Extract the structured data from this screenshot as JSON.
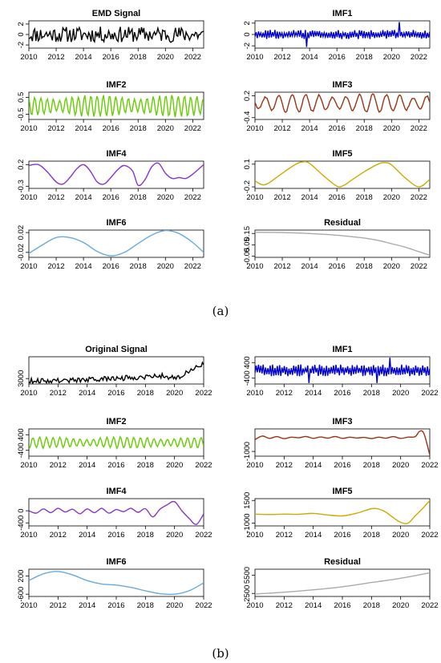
{
  "figure": {
    "caption_a": "(a)",
    "caption_b": "(b)"
  },
  "chart_data": [
    {
      "group": "a",
      "type": "line",
      "title": "EMD Signal",
      "color": "#000000",
      "x_range": [
        2010,
        2022.8
      ],
      "xticks": [
        2010,
        2012,
        2014,
        2016,
        2018,
        2020,
        2022
      ],
      "ylim": [
        -2.6,
        2.6
      ],
      "yticks": [
        {
          "v": 2,
          "label": "2"
        },
        {
          "v": 0,
          "label": "0"
        },
        {
          "v": -2,
          "label": "-2"
        }
      ],
      "series": [
        {
          "kind": "noise",
          "n": 150,
          "amp": 1.5,
          "seed": 11
        }
      ]
    },
    {
      "group": "a",
      "type": "line",
      "title": "IMF1",
      "color": "#0000cc",
      "x_range": [
        2010,
        2022.8
      ],
      "xticks": [
        2010,
        2012,
        2014,
        2016,
        2018,
        2020,
        2022
      ],
      "ylim": [
        -2.4,
        2.4
      ],
      "yticks": [
        {
          "v": 2,
          "label": "2"
        },
        {
          "v": 0,
          "label": "0"
        },
        {
          "v": -2,
          "label": "-2"
        }
      ],
      "series": [
        {
          "kind": "osc",
          "n": 150,
          "amp": 0.8,
          "spike": 2.2,
          "seed": 5
        }
      ]
    },
    {
      "group": "a",
      "type": "line",
      "title": "IMF2",
      "color": "#66cc00",
      "x_range": [
        2010,
        2022.8
      ],
      "xticks": [
        2010,
        2012,
        2014,
        2016,
        2018,
        2020,
        2022
      ],
      "ylim": [
        -0.8,
        0.8
      ],
      "yticks": [
        {
          "v": 0.5,
          "label": "0.5"
        },
        {
          "v": -0.5,
          "label": "-0.5"
        }
      ],
      "series": [
        {
          "kind": "wave",
          "n": 160,
          "amp": 0.55,
          "periods": 28,
          "seed": 2
        }
      ]
    },
    {
      "group": "a",
      "type": "line",
      "title": "IMF3",
      "color": "#993311",
      "x_range": [
        2010,
        2022.8
      ],
      "xticks": [
        2010,
        2012,
        2014,
        2016,
        2018,
        2020,
        2022
      ],
      "ylim": [
        -0.45,
        0.3
      ],
      "yticks": [
        {
          "v": 0.2,
          "label": "0.2"
        },
        {
          "v": -0.4,
          "label": "-0.4"
        }
      ],
      "series": [
        {
          "kind": "wave",
          "n": 160,
          "amp": 0.22,
          "periods": 13,
          "seed": 3
        }
      ]
    },
    {
      "group": "a",
      "type": "line",
      "title": "IMF4",
      "color": "#8833cc",
      "x_range": [
        2010,
        2022.8
      ],
      "xticks": [
        2010,
        2012,
        2014,
        2016,
        2018,
        2020,
        2022
      ],
      "ylim": [
        -0.35,
        0.28
      ],
      "yticks": [
        {
          "v": 0.2,
          "label": "0.2"
        },
        {
          "v": -0.3,
          "label": "-0.3"
        }
      ],
      "x": [
        2010,
        2010.7,
        2011.3,
        2012,
        2012.5,
        2013,
        2013.5,
        2014,
        2014.5,
        2015,
        2015.5,
        2016,
        2016.5,
        2017,
        2017.6,
        2018,
        2018.5,
        2019,
        2019.5,
        2020,
        2020.5,
        2021,
        2021.5,
        2022,
        2022.8
      ],
      "y": [
        0.18,
        0.2,
        0.05,
        -0.2,
        -0.25,
        -0.1,
        0.1,
        0.2,
        0.05,
        -0.2,
        -0.25,
        -0.1,
        0.08,
        0.18,
        0.05,
        -0.28,
        -0.15,
        0.15,
        0.23,
        0.0,
        -0.12,
        -0.1,
        -0.12,
        -0.02,
        0.2
      ]
    },
    {
      "group": "a",
      "type": "line",
      "title": "IMF5",
      "color": "#ccaa00",
      "x_range": [
        2010,
        2022.8
      ],
      "xticks": [
        2010,
        2012,
        2014,
        2016,
        2018,
        2020,
        2022
      ],
      "ylim": [
        -0.22,
        0.14
      ],
      "yticks": [
        {
          "v": 0.1,
          "label": "0.1"
        },
        {
          "v": -0.2,
          "label": "-0.2"
        }
      ],
      "x": [
        2010,
        2010.5,
        2011,
        2012,
        2013,
        2013.5,
        2014,
        2015,
        2016,
        2016.5,
        2017,
        2018,
        2019,
        2019.5,
        2020,
        2021,
        2022,
        2022.8
      ],
      "y": [
        -0.12,
        -0.17,
        -0.15,
        -0.02,
        0.1,
        0.13,
        0.11,
        -0.05,
        -0.19,
        -0.18,
        -0.12,
        0.0,
        0.1,
        0.12,
        0.09,
        -0.08,
        -0.2,
        -0.1
      ]
    },
    {
      "group": "a",
      "type": "line",
      "title": "IMF6",
      "color": "#66aadd",
      "x_range": [
        2010,
        2022.8
      ],
      "xticks": [
        2010,
        2012,
        2014,
        2016,
        2018,
        2020,
        2022
      ],
      "ylim": [
        -0.03,
        0.025
      ],
      "yticks": [
        {
          "v": 0.02,
          "label": "0.02"
        },
        {
          "v": -0.02,
          "label": "-0.02"
        }
      ],
      "x": [
        2010,
        2011,
        2012,
        2013,
        2014,
        2015,
        2016,
        2017,
        2018,
        2019,
        2020,
        2021,
        2022,
        2022.8
      ],
      "y": [
        -0.022,
        -0.005,
        0.01,
        0.01,
        0.0,
        -0.018,
        -0.027,
        -0.02,
        -0.002,
        0.015,
        0.024,
        0.018,
        0.0,
        -0.02
      ]
    },
    {
      "group": "a",
      "type": "line",
      "title": "Residual",
      "color": "#aaaaaa",
      "x_range": [
        2010,
        2022.8
      ],
      "xticks": [
        2010,
        2012,
        2014,
        2016,
        2018,
        2020,
        2022
      ],
      "ylim": [
        -0.06,
        0.18
      ],
      "yticks": [
        {
          "v": 0.15,
          "label": "0.15"
        },
        {
          "v": 0.05,
          "label": "0.05"
        },
        {
          "v": -0.05,
          "label": "-0.05"
        }
      ],
      "x": [
        2010,
        2012,
        2014,
        2016,
        2018,
        2019,
        2020,
        2021,
        2022,
        2022.8
      ],
      "y": [
        0.16,
        0.158,
        0.15,
        0.135,
        0.11,
        0.09,
        0.06,
        0.03,
        -0.01,
        -0.04
      ]
    },
    {
      "group": "b",
      "type": "line",
      "title": "Original Signal",
      "color": "#000000",
      "x_range": [
        2010,
        2022
      ],
      "xticks": [
        2010,
        2012,
        2014,
        2016,
        2018,
        2020,
        2022
      ],
      "ylim": [
        1500,
        9000
      ],
      "yticks": [
        {
          "v": 3000,
          "label": "3000"
        }
      ],
      "series": [
        {
          "kind": "trend",
          "n": 140,
          "amp": 700,
          "seed": 9
        }
      ]
    },
    {
      "group": "b",
      "type": "line",
      "title": "IMF1",
      "color": "#0000cc",
      "x_range": [
        2010,
        2022
      ],
      "xticks": [
        2010,
        2012,
        2014,
        2016,
        2018,
        2020,
        2022
      ],
      "ylim": [
        -700,
        700
      ],
      "yticks": [
        {
          "v": 400,
          "label": "400"
        },
        {
          "v": -400,
          "label": "-400"
        }
      ],
      "series": [
        {
          "kind": "osc",
          "n": 150,
          "amp": 300,
          "spike": 650,
          "seed": 13
        }
      ]
    },
    {
      "group": "b",
      "type": "line",
      "title": "IMF2",
      "color": "#66cc00",
      "x_range": [
        2010,
        2022
      ],
      "xticks": [
        2010,
        2012,
        2014,
        2016,
        2018,
        2020,
        2022
      ],
      "ylim": [
        -700,
        700
      ],
      "yticks": [
        {
          "v": 400,
          "label": "400"
        },
        {
          "v": -400,
          "label": "-400"
        }
      ],
      "series": [
        {
          "kind": "wave",
          "n": 160,
          "amp": 250,
          "periods": 26,
          "seed": 4
        }
      ]
    },
    {
      "group": "b",
      "type": "line",
      "title": "IMF3",
      "color": "#993311",
      "x_range": [
        2010,
        2022
      ],
      "xticks": [
        2010,
        2012,
        2014,
        2016,
        2018,
        2020,
        2022
      ],
      "ylim": [
        -1400,
        900
      ],
      "yticks": [
        {
          "v": -1000,
          "label": "-1000"
        }
      ],
      "x": [
        2010,
        2010.5,
        2011,
        2011.5,
        2012,
        2012.5,
        2013,
        2013.5,
        2014,
        2014.5,
        2015,
        2015.5,
        2016,
        2016.5,
        2017,
        2017.5,
        2018,
        2018.5,
        2019,
        2019.5,
        2020,
        2020.5,
        2021,
        2021.3,
        2021.6,
        2022
      ],
      "y": [
        0,
        300,
        100,
        250,
        80,
        200,
        150,
        260,
        100,
        220,
        120,
        260,
        100,
        200,
        130,
        180,
        90,
        200,
        120,
        250,
        100,
        200,
        250,
        700,
        500,
        -1300
      ]
    },
    {
      "group": "b",
      "type": "line",
      "title": "IMF4",
      "color": "#8833cc",
      "x_range": [
        2010,
        2022
      ],
      "xticks": [
        2010,
        2012,
        2014,
        2016,
        2018,
        2020,
        2022
      ],
      "ylim": [
        -500,
        400
      ],
      "yticks": [
        {
          "v": 0,
          "label": "0"
        },
        {
          "v": -400,
          "label": "-400"
        }
      ],
      "x": [
        2010,
        2010.5,
        2011,
        2011.5,
        2012,
        2012.5,
        2013,
        2013.5,
        2014,
        2014.5,
        2015,
        2015.5,
        2016,
        2016.5,
        2017,
        2017.5,
        2018,
        2018.5,
        2019,
        2019.5,
        2020,
        2020.5,
        2021,
        2021.5,
        2022
      ],
      "y": [
        0,
        -80,
        60,
        -60,
        80,
        -40,
        50,
        -100,
        60,
        -60,
        80,
        -80,
        40,
        -30,
        80,
        -50,
        70,
        -200,
        50,
        200,
        300,
        0,
        -250,
        -450,
        -100
      ]
    },
    {
      "group": "b",
      "type": "line",
      "title": "IMF5",
      "color": "#ccaa00",
      "x_range": [
        2010,
        2022
      ],
      "xticks": [
        2010,
        2012,
        2014,
        2016,
        2018,
        2020,
        2022
      ],
      "ylim": [
        -1300,
        1700
      ],
      "yticks": [
        {
          "v": 1500,
          "label": "1500"
        },
        {
          "v": -1000,
          "label": "-1000"
        }
      ],
      "x": [
        2010,
        2011,
        2012,
        2013,
        2014,
        2015,
        2016,
        2017,
        2018,
        2018.5,
        2019,
        2019.5,
        2020,
        2020.5,
        2021,
        2021.5,
        2022
      ],
      "y": [
        0,
        -50,
        0,
        -20,
        80,
        -100,
        -200,
        100,
        600,
        550,
        200,
        -400,
        -900,
        -1000,
        -200,
        600,
        1500
      ]
    },
    {
      "group": "b",
      "type": "line",
      "title": "IMF6",
      "color": "#66aadd",
      "x_range": [
        2010,
        2022
      ],
      "xticks": [
        2010,
        2012,
        2014,
        2016,
        2018,
        2020,
        2022
      ],
      "ylim": [
        -700,
        500
      ],
      "yticks": [
        {
          "v": 200,
          "label": "200"
        },
        {
          "v": -600,
          "label": "-600"
        }
      ],
      "x": [
        2010,
        2011,
        2012,
        2013,
        2014,
        2015,
        2016,
        2017,
        2018,
        2019,
        2020,
        2021,
        2022
      ],
      "y": [
        0,
        300,
        400,
        250,
        0,
        -150,
        -200,
        -300,
        -450,
        -580,
        -600,
        -450,
        -100
      ]
    },
    {
      "group": "b",
      "type": "line",
      "title": "Residual",
      "color": "#aaaaaa",
      "x_range": [
        2010,
        2022
      ],
      "xticks": [
        2010,
        2012,
        2014,
        2016,
        2018,
        2020,
        2022
      ],
      "ylim": [
        2000,
        6500
      ],
      "yticks": [
        {
          "v": 5500,
          "label": "5500"
        },
        {
          "v": 2500,
          "label": "2500"
        }
      ],
      "x": [
        2010,
        2012,
        2014,
        2016,
        2018,
        2020,
        2022
      ],
      "y": [
        2400,
        2700,
        3100,
        3600,
        4300,
        5000,
        5900
      ]
    }
  ]
}
